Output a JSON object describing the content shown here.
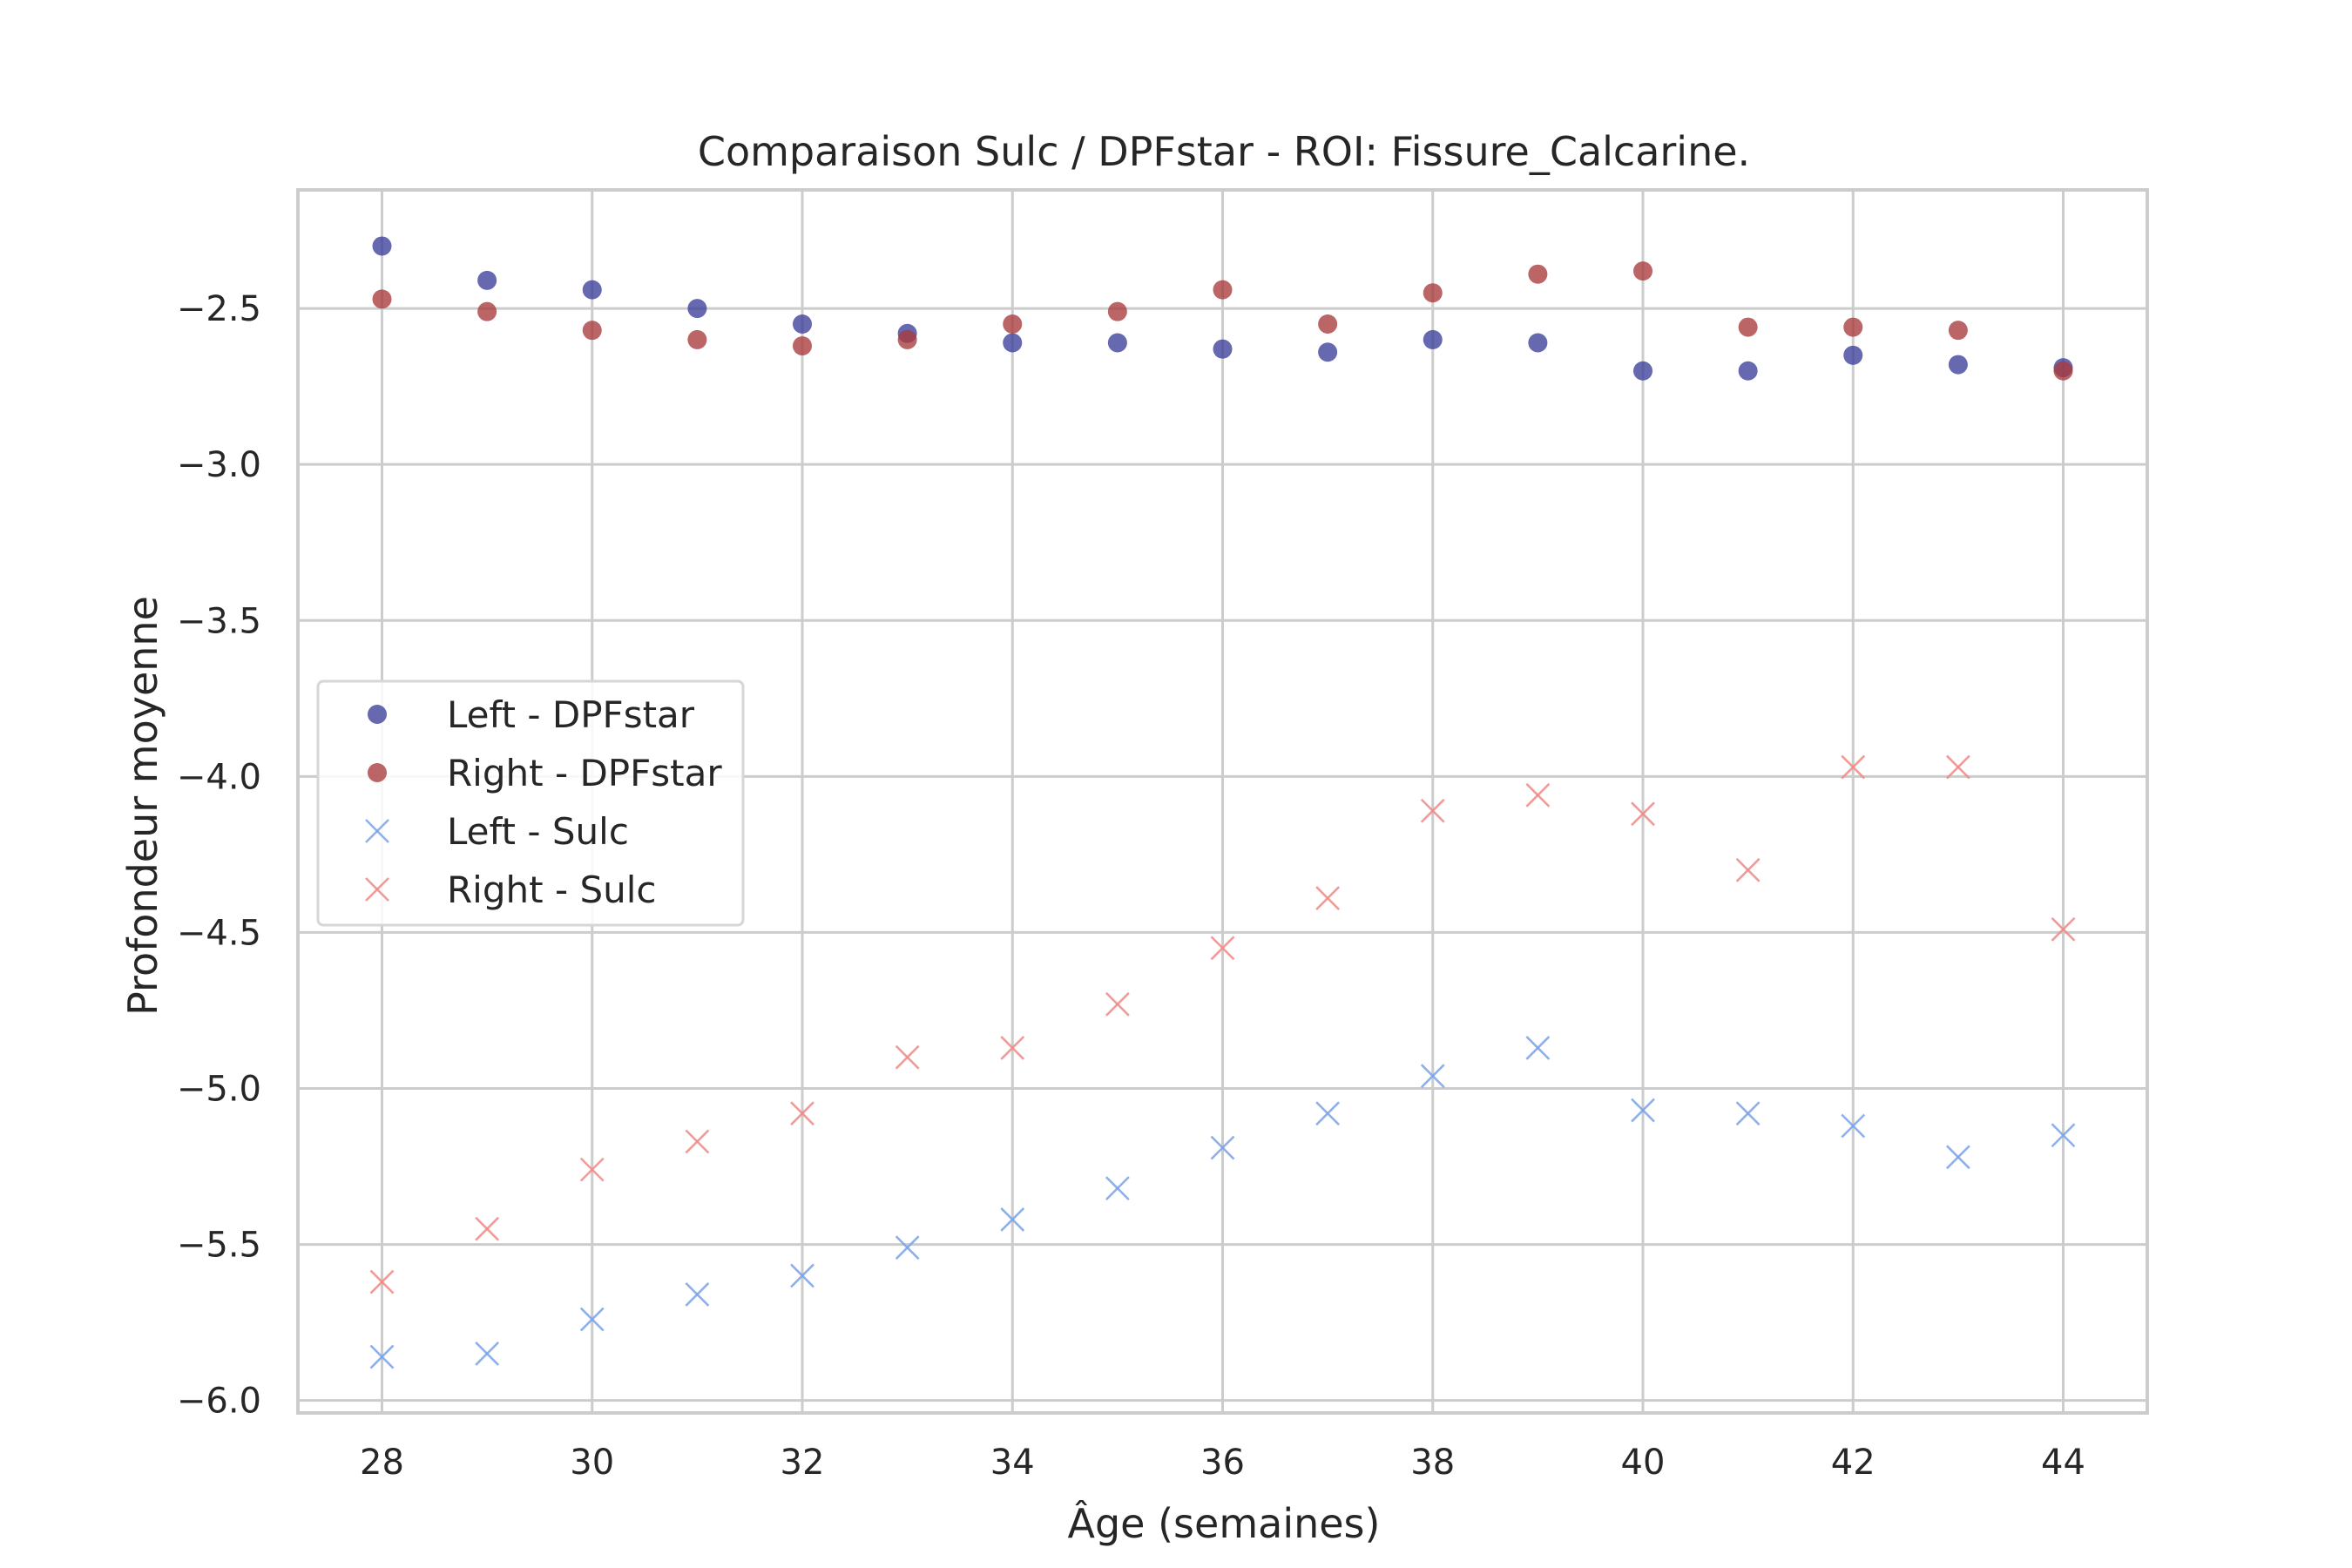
{
  "chart_data": {
    "type": "scatter",
    "title": "Comparaison Sulc / DPFstar - ROI: Fissure_Calcarine.",
    "xlabel": "Âge (semaines)",
    "ylabel": "Profondeur moyenne",
    "xlim": [
      27.2,
      44.8
    ],
    "ylim": [
      -6.04,
      -2.12
    ],
    "x_ticks": [
      28,
      30,
      32,
      34,
      36,
      38,
      40,
      42,
      44
    ],
    "x_tick_labels": [
      "28",
      "30",
      "32",
      "34",
      "36",
      "38",
      "40",
      "42",
      "44"
    ],
    "y_ticks": [
      -2.5,
      -3.0,
      -3.5,
      -4.0,
      -4.5,
      -5.0,
      -5.5,
      -6.0
    ],
    "y_tick_labels": [
      "−2.5",
      "−3.0",
      "−3.5",
      "−4.0",
      "−4.5",
      "−5.0",
      "−5.5",
      "−6.0"
    ],
    "grid": true,
    "legend_position": "center-left",
    "x": [
      28,
      29,
      30,
      31,
      32,
      33,
      34,
      35,
      36,
      37,
      38,
      39,
      40,
      41,
      42,
      43,
      44
    ],
    "series": [
      {
        "name": "Left - DPFstar",
        "marker": "circle",
        "color": "#3b3d9a",
        "values": [
          -2.3,
          -2.41,
          -2.44,
          -2.5,
          -2.55,
          -2.58,
          -2.61,
          -2.61,
          -2.63,
          -2.64,
          -2.6,
          -2.61,
          -2.7,
          -2.7,
          -2.65,
          -2.68,
          -2.69
        ]
      },
      {
        "name": "Right - DPFstar",
        "marker": "circle",
        "color": "#a93a3b",
        "values": [
          -2.47,
          -2.51,
          -2.57,
          -2.6,
          -2.62,
          -2.6,
          -2.55,
          -2.51,
          -2.44,
          -2.55,
          -2.45,
          -2.39,
          -2.38,
          -2.56,
          -2.56,
          -2.57,
          -2.7
        ]
      },
      {
        "name": "Left - Sulc",
        "marker": "x",
        "color": "#7aa2e6",
        "values": [
          -5.86,
          -5.85,
          -5.74,
          -5.66,
          -5.6,
          -5.51,
          -5.42,
          -5.32,
          -5.19,
          -5.08,
          -4.96,
          -4.87,
          -5.07,
          -5.08,
          -5.12,
          -5.22,
          -5.15
        ]
      },
      {
        "name": "Right - Sulc",
        "marker": "x",
        "color": "#ee8a86",
        "values": [
          -5.62,
          -5.45,
          -5.26,
          -5.17,
          -5.08,
          -4.9,
          -4.87,
          -4.73,
          -4.55,
          -4.39,
          -4.11,
          -4.06,
          -4.12,
          -4.3,
          -3.97,
          -3.97,
          -4.49
        ]
      }
    ]
  }
}
